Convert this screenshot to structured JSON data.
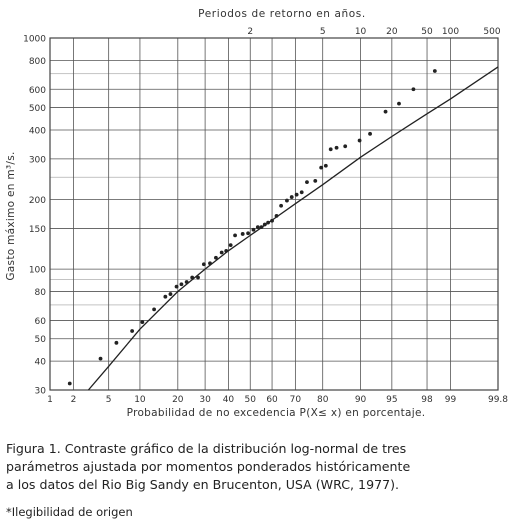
{
  "chart_data": {
    "type": "scatter",
    "title": "Periodos de retorno en años.",
    "xlabel": "Probabilidad de no excedencia P(X≤ x) en porcentaje.",
    "ylabel": "Gasto máximo en m³/s.",
    "x_scale": "normal-probability",
    "y_scale": "log",
    "xlim": [
      1,
      99.8
    ],
    "ylim": [
      30,
      1000
    ],
    "grid": true,
    "x_ticks": [
      1,
      2,
      5,
      10,
      20,
      30,
      40,
      50,
      60,
      70,
      80,
      90,
      95,
      98,
      99,
      99.8
    ],
    "x_tick_labels": [
      "1",
      "2",
      "5",
      "10",
      "20",
      "30",
      "40",
      "50",
      "60",
      "70",
      "80",
      "90",
      "95",
      "98",
      "99",
      "99.8"
    ],
    "y_ticks": [
      30,
      40,
      50,
      60,
      80,
      100,
      150,
      200,
      300,
      400,
      500,
      600,
      800,
      1000
    ],
    "y_tick_labels": [
      "30",
      "40",
      "50",
      "60",
      "80",
      "100",
      "150",
      "200",
      "300",
      "400",
      "500",
      "600",
      "800",
      "1000"
    ],
    "top_axis": {
      "label": "Periodos de retorno en años.",
      "return_periods": [
        2,
        5,
        10,
        20,
        50,
        100,
        500
      ],
      "tick_labels": [
        "2",
        "5",
        "10",
        "20",
        "50",
        "100",
        "500"
      ]
    },
    "series": [
      {
        "kind": "points",
        "x": [
          1.8,
          4.1,
          6.0,
          8.5,
          10.5,
          13.2,
          16.2,
          17.7,
          19.6,
          21.2,
          23.0,
          25.0,
          27.2,
          29.5,
          32.0,
          34.5,
          37.0,
          39.0,
          41.0,
          43.0,
          46.5,
          49.0,
          51.5,
          53.5,
          55.2,
          56.7,
          58.2,
          60.0,
          62.0,
          64.0,
          66.5,
          68.5,
          70.5,
          72.5,
          74.5,
          77.5,
          79.5,
          81.0,
          82.5,
          84.2,
          86.5,
          89.8,
          91.8,
          94.2,
          95.8,
          97.1,
          98.4
        ],
        "y": [
          32,
          41,
          48,
          54,
          59,
          67,
          76,
          78,
          84,
          86,
          88,
          92,
          92,
          105,
          106,
          112,
          118,
          120,
          127,
          140,
          142,
          143,
          148,
          152,
          152,
          156,
          159,
          162,
          170,
          188,
          198,
          205,
          210,
          215,
          238,
          241,
          275,
          280,
          330,
          335,
          340,
          360,
          385,
          480,
          520,
          600,
          720
        ]
      },
      {
        "kind": "fitted-curve",
        "x": [
          3.0,
          5.0,
          10.0,
          20.0,
          30.0,
          40.0,
          50.0,
          60.0,
          70.0,
          80.0,
          90.0,
          95.0,
          98.0,
          99.0,
          99.8
        ],
        "y": [
          30,
          38,
          55,
          80,
          100,
          120,
          140,
          163,
          192,
          232,
          305,
          375,
          470,
          545,
          750
        ]
      }
    ]
  },
  "caption": {
    "lines": [
      "Figura 1. Contraste gráfico de la distribución log-normal de tres",
      "parámetros ajustada por momentos ponderados históricamente",
      "a los datos del Rio Big Sandy en Brucenton, USA (WRC, 1977)."
    ],
    "note": "*Ilegibilidad de origen"
  }
}
